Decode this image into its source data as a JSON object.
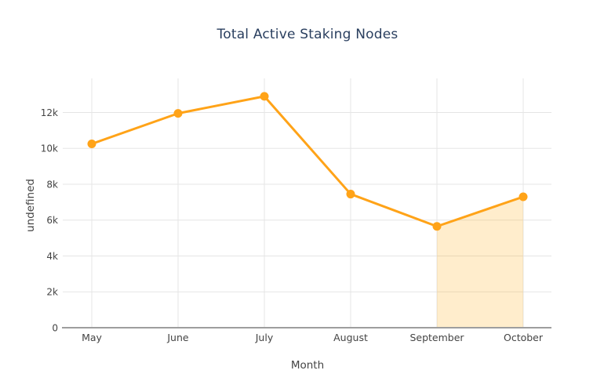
{
  "header": {
    "title": "Total Active Staking Nodes"
  },
  "chart_data": {
    "type": "line",
    "title": "Total Active Staking Nodes",
    "xlabel": "Month",
    "ylabel": "undefined",
    "categories": [
      "May",
      "June",
      "July",
      "August",
      "September",
      "October"
    ],
    "series": [
      {
        "name": "Total Active Staking Nodes",
        "values": [
          10250,
          11950,
          12900,
          7450,
          5650,
          7300
        ]
      }
    ],
    "ylim": [
      0,
      13900
    ],
    "yticks": {
      "values": [
        0,
        2000,
        4000,
        6000,
        8000,
        10000,
        12000
      ],
      "labels": [
        "0",
        "2k",
        "4k",
        "6k",
        "8k",
        "10k",
        "12k"
      ]
    },
    "grid": true,
    "legend_position": "none",
    "line_color": "#ffa318",
    "marker_color": "#ffa318",
    "gridline_color": "#e5e5e5",
    "axisline_color": "#9e9e9e",
    "area_fill": {
      "from_category": "September",
      "to_category": "October",
      "color": "rgba(255,165,0,0.2)"
    }
  }
}
